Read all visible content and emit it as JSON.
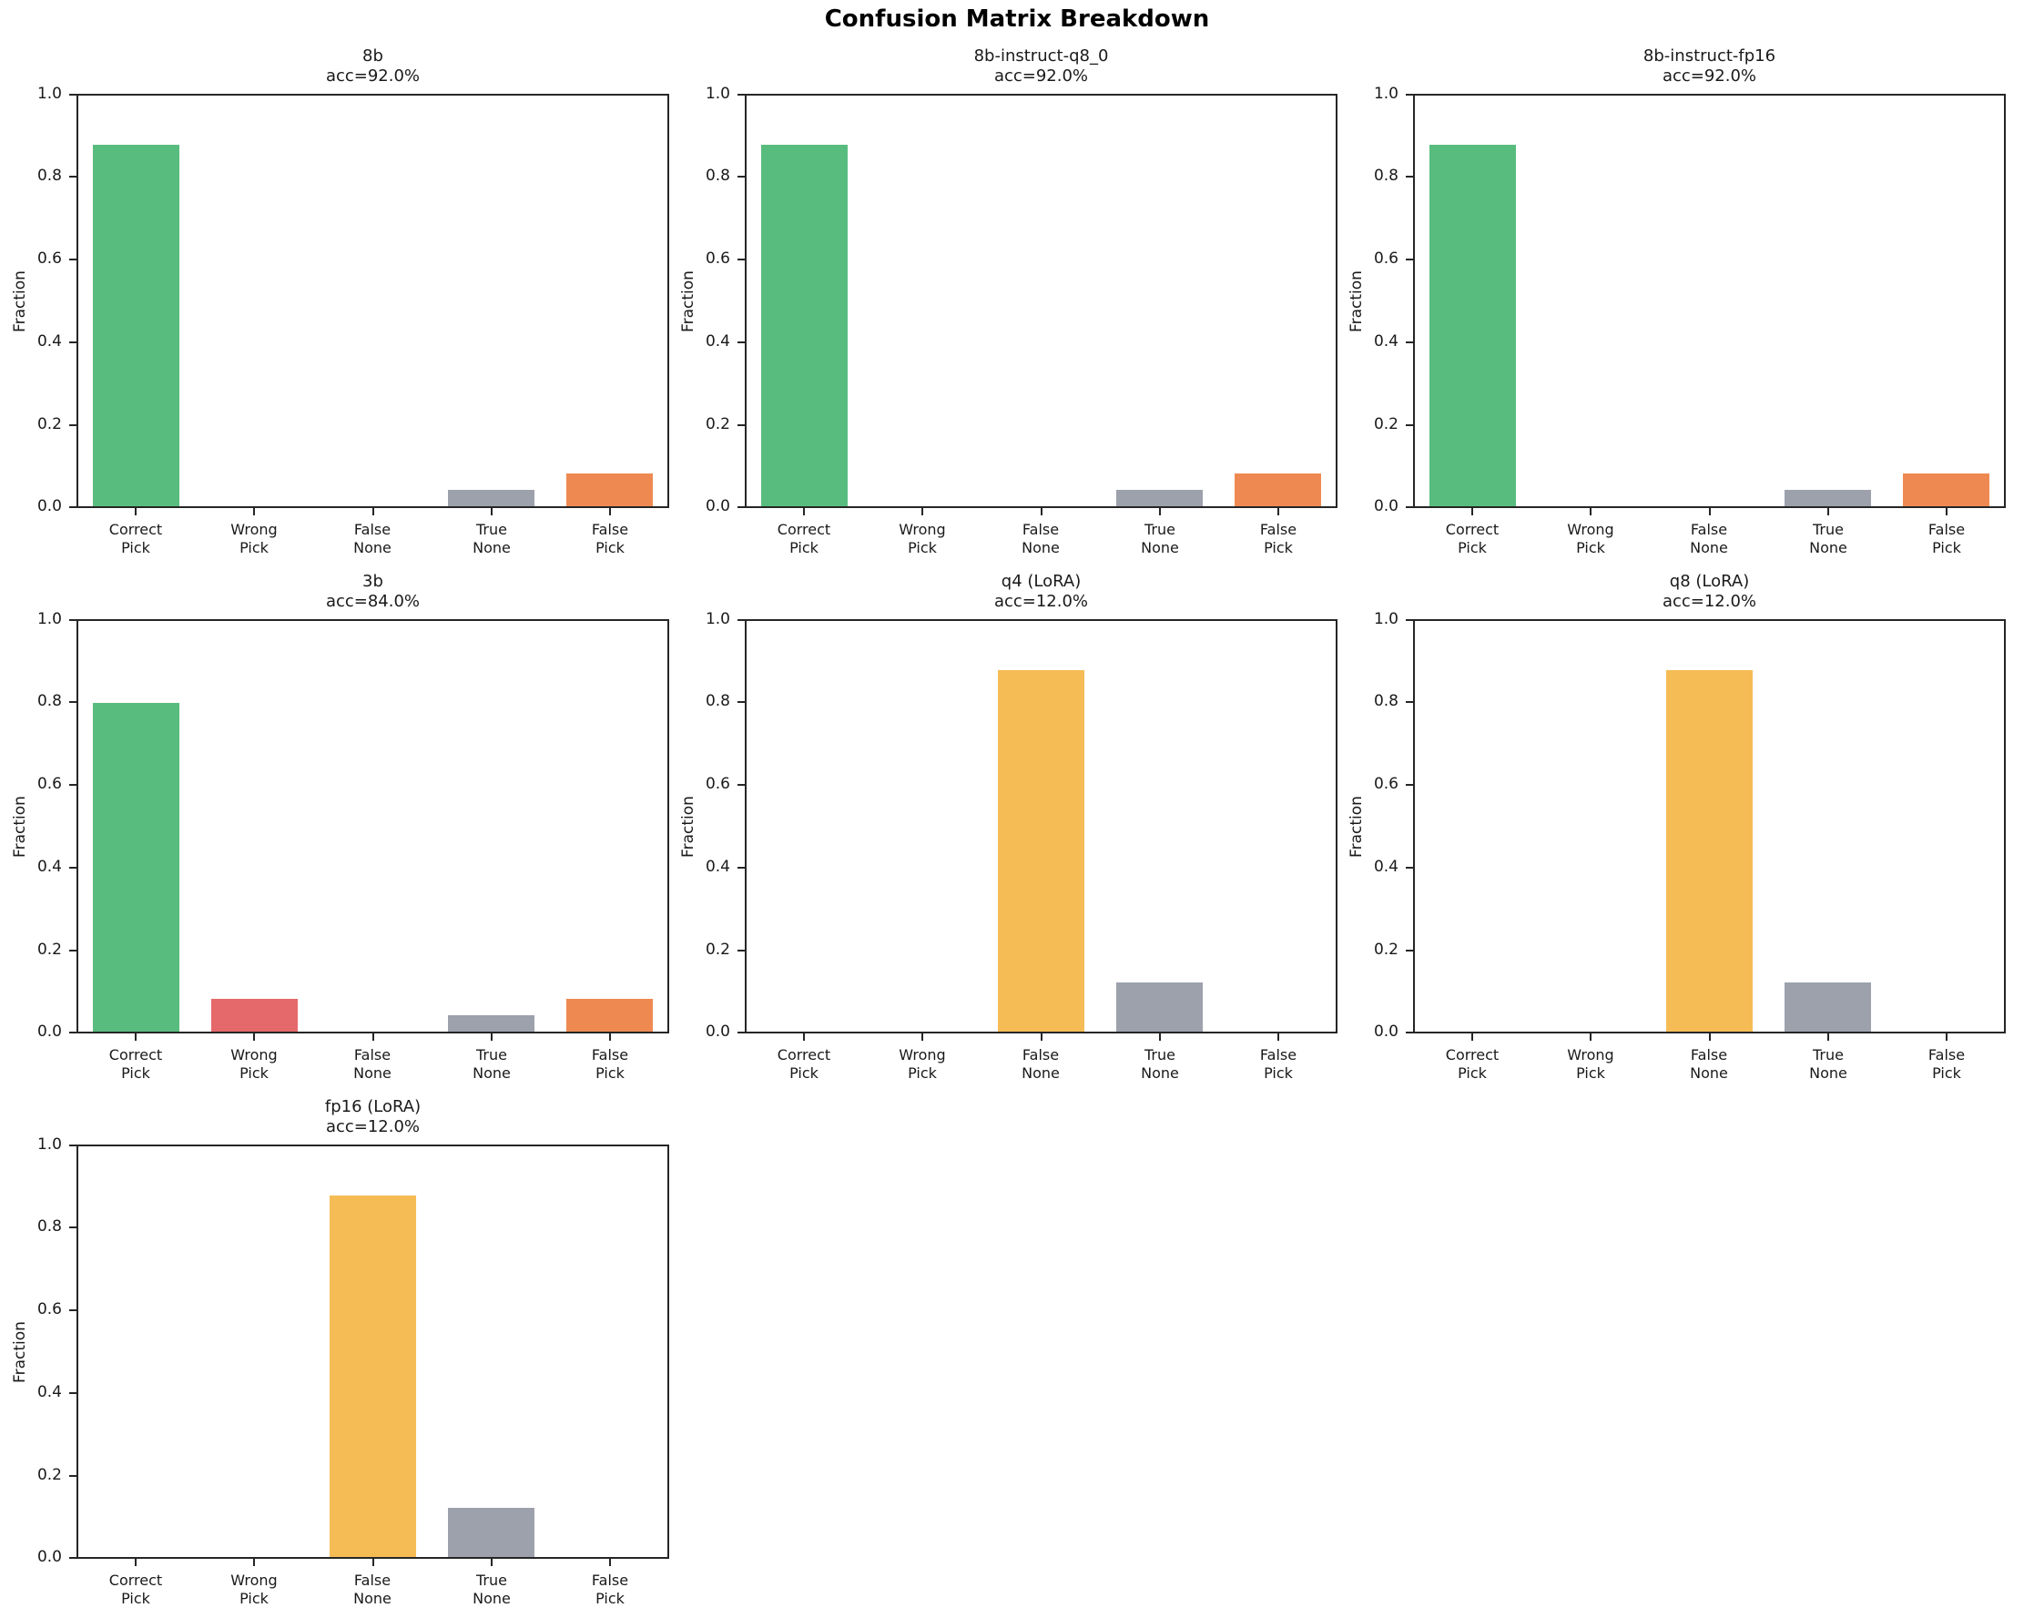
{
  "figure": {
    "title": "Confusion Matrix Breakdown",
    "background_color": "#ffffff",
    "text_color": "#1a1a1a"
  },
  "chart_data": {
    "type": "bar",
    "title": "Confusion Matrix Breakdown",
    "ylabel": "Fraction",
    "ylim": [
      0.0,
      1.0
    ],
    "yticks": [
      0.0,
      0.2,
      0.4,
      0.6,
      0.8,
      1.0
    ],
    "grid": "off",
    "legend": "none",
    "categories": [
      "Correct Pick",
      "Wrong Pick",
      "False None",
      "True None",
      "False Pick"
    ],
    "category_tick_lines": [
      "Correct\nPick",
      "Wrong\nPick",
      "False\nNone",
      "True\nNone",
      "False\nPick"
    ],
    "bar_colors": [
      "#58bc7e",
      "#e5696b",
      "#f5bc55",
      "#9ca1ac",
      "#ee8a51"
    ],
    "bar_color_names": [
      "green",
      "red",
      "yellow",
      "gray",
      "orange"
    ],
    "layout": "3x3 grid of subplots, 7 used (row-major), boxed axes, no gridlines",
    "subplots": [
      {
        "title": "8b",
        "subtitle": "acc=92.0%",
        "grid_pos": [
          0,
          0
        ],
        "values": [
          0.88,
          0.0,
          0.0,
          0.04,
          0.08
        ]
      },
      {
        "title": "8b-instruct-q8_0",
        "subtitle": "acc=92.0%",
        "grid_pos": [
          0,
          1
        ],
        "values": [
          0.88,
          0.0,
          0.0,
          0.04,
          0.08
        ]
      },
      {
        "title": "8b-instruct-fp16",
        "subtitle": "acc=92.0%",
        "grid_pos": [
          0,
          2
        ],
        "values": [
          0.88,
          0.0,
          0.0,
          0.04,
          0.08
        ]
      },
      {
        "title": "3b",
        "subtitle": "acc=84.0%",
        "grid_pos": [
          1,
          0
        ],
        "values": [
          0.8,
          0.08,
          0.0,
          0.04,
          0.08
        ]
      },
      {
        "title": "q4 (LoRA)",
        "subtitle": "acc=12.0%",
        "grid_pos": [
          1,
          1
        ],
        "values": [
          0.0,
          0.0,
          0.88,
          0.12,
          0.0
        ]
      },
      {
        "title": "q8 (LoRA)",
        "subtitle": "acc=12.0%",
        "grid_pos": [
          1,
          2
        ],
        "values": [
          0.0,
          0.0,
          0.88,
          0.12,
          0.0
        ]
      },
      {
        "title": "fp16 (LoRA)",
        "subtitle": "acc=12.0%",
        "grid_pos": [
          2,
          0
        ],
        "values": [
          0.0,
          0.0,
          0.88,
          0.12,
          0.0
        ]
      }
    ]
  }
}
